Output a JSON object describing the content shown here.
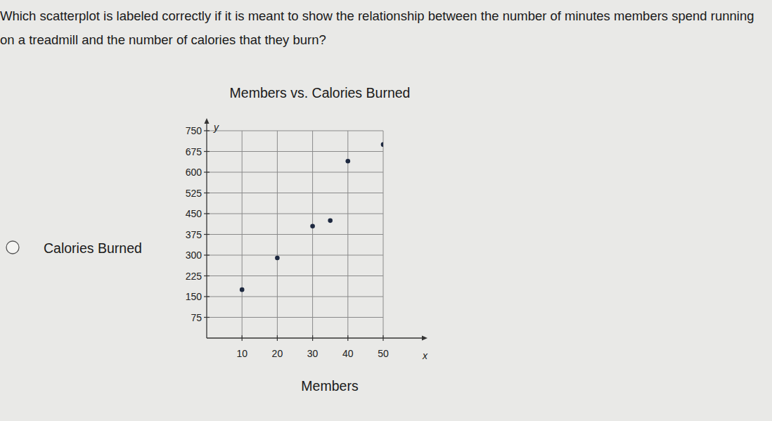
{
  "question": "Which scatterplot is labeled correctly if it is meant to show the relationship between the number of minutes members spend running on a treadmill and the number of calories that they burn?",
  "chart_data": {
    "type": "scatter",
    "title": "Members vs. Calories Burned",
    "x_label": "Members",
    "y_label": "Calories Burned",
    "annotations": [
      "y",
      "x"
    ],
    "x": [
      10,
      20,
      30,
      35,
      40,
      50
    ],
    "values": [
      175,
      290,
      405,
      425,
      640,
      700
    ],
    "color": "#1e2940",
    "marker": "circle",
    "xlim": [
      0,
      50
    ],
    "ylim": [
      0,
      750
    ],
    "xticks": [
      10,
      20,
      30,
      40,
      50
    ],
    "yticks": [
      75,
      150,
      225,
      300,
      375,
      450,
      525,
      600,
      675,
      750
    ],
    "grid": true
  }
}
